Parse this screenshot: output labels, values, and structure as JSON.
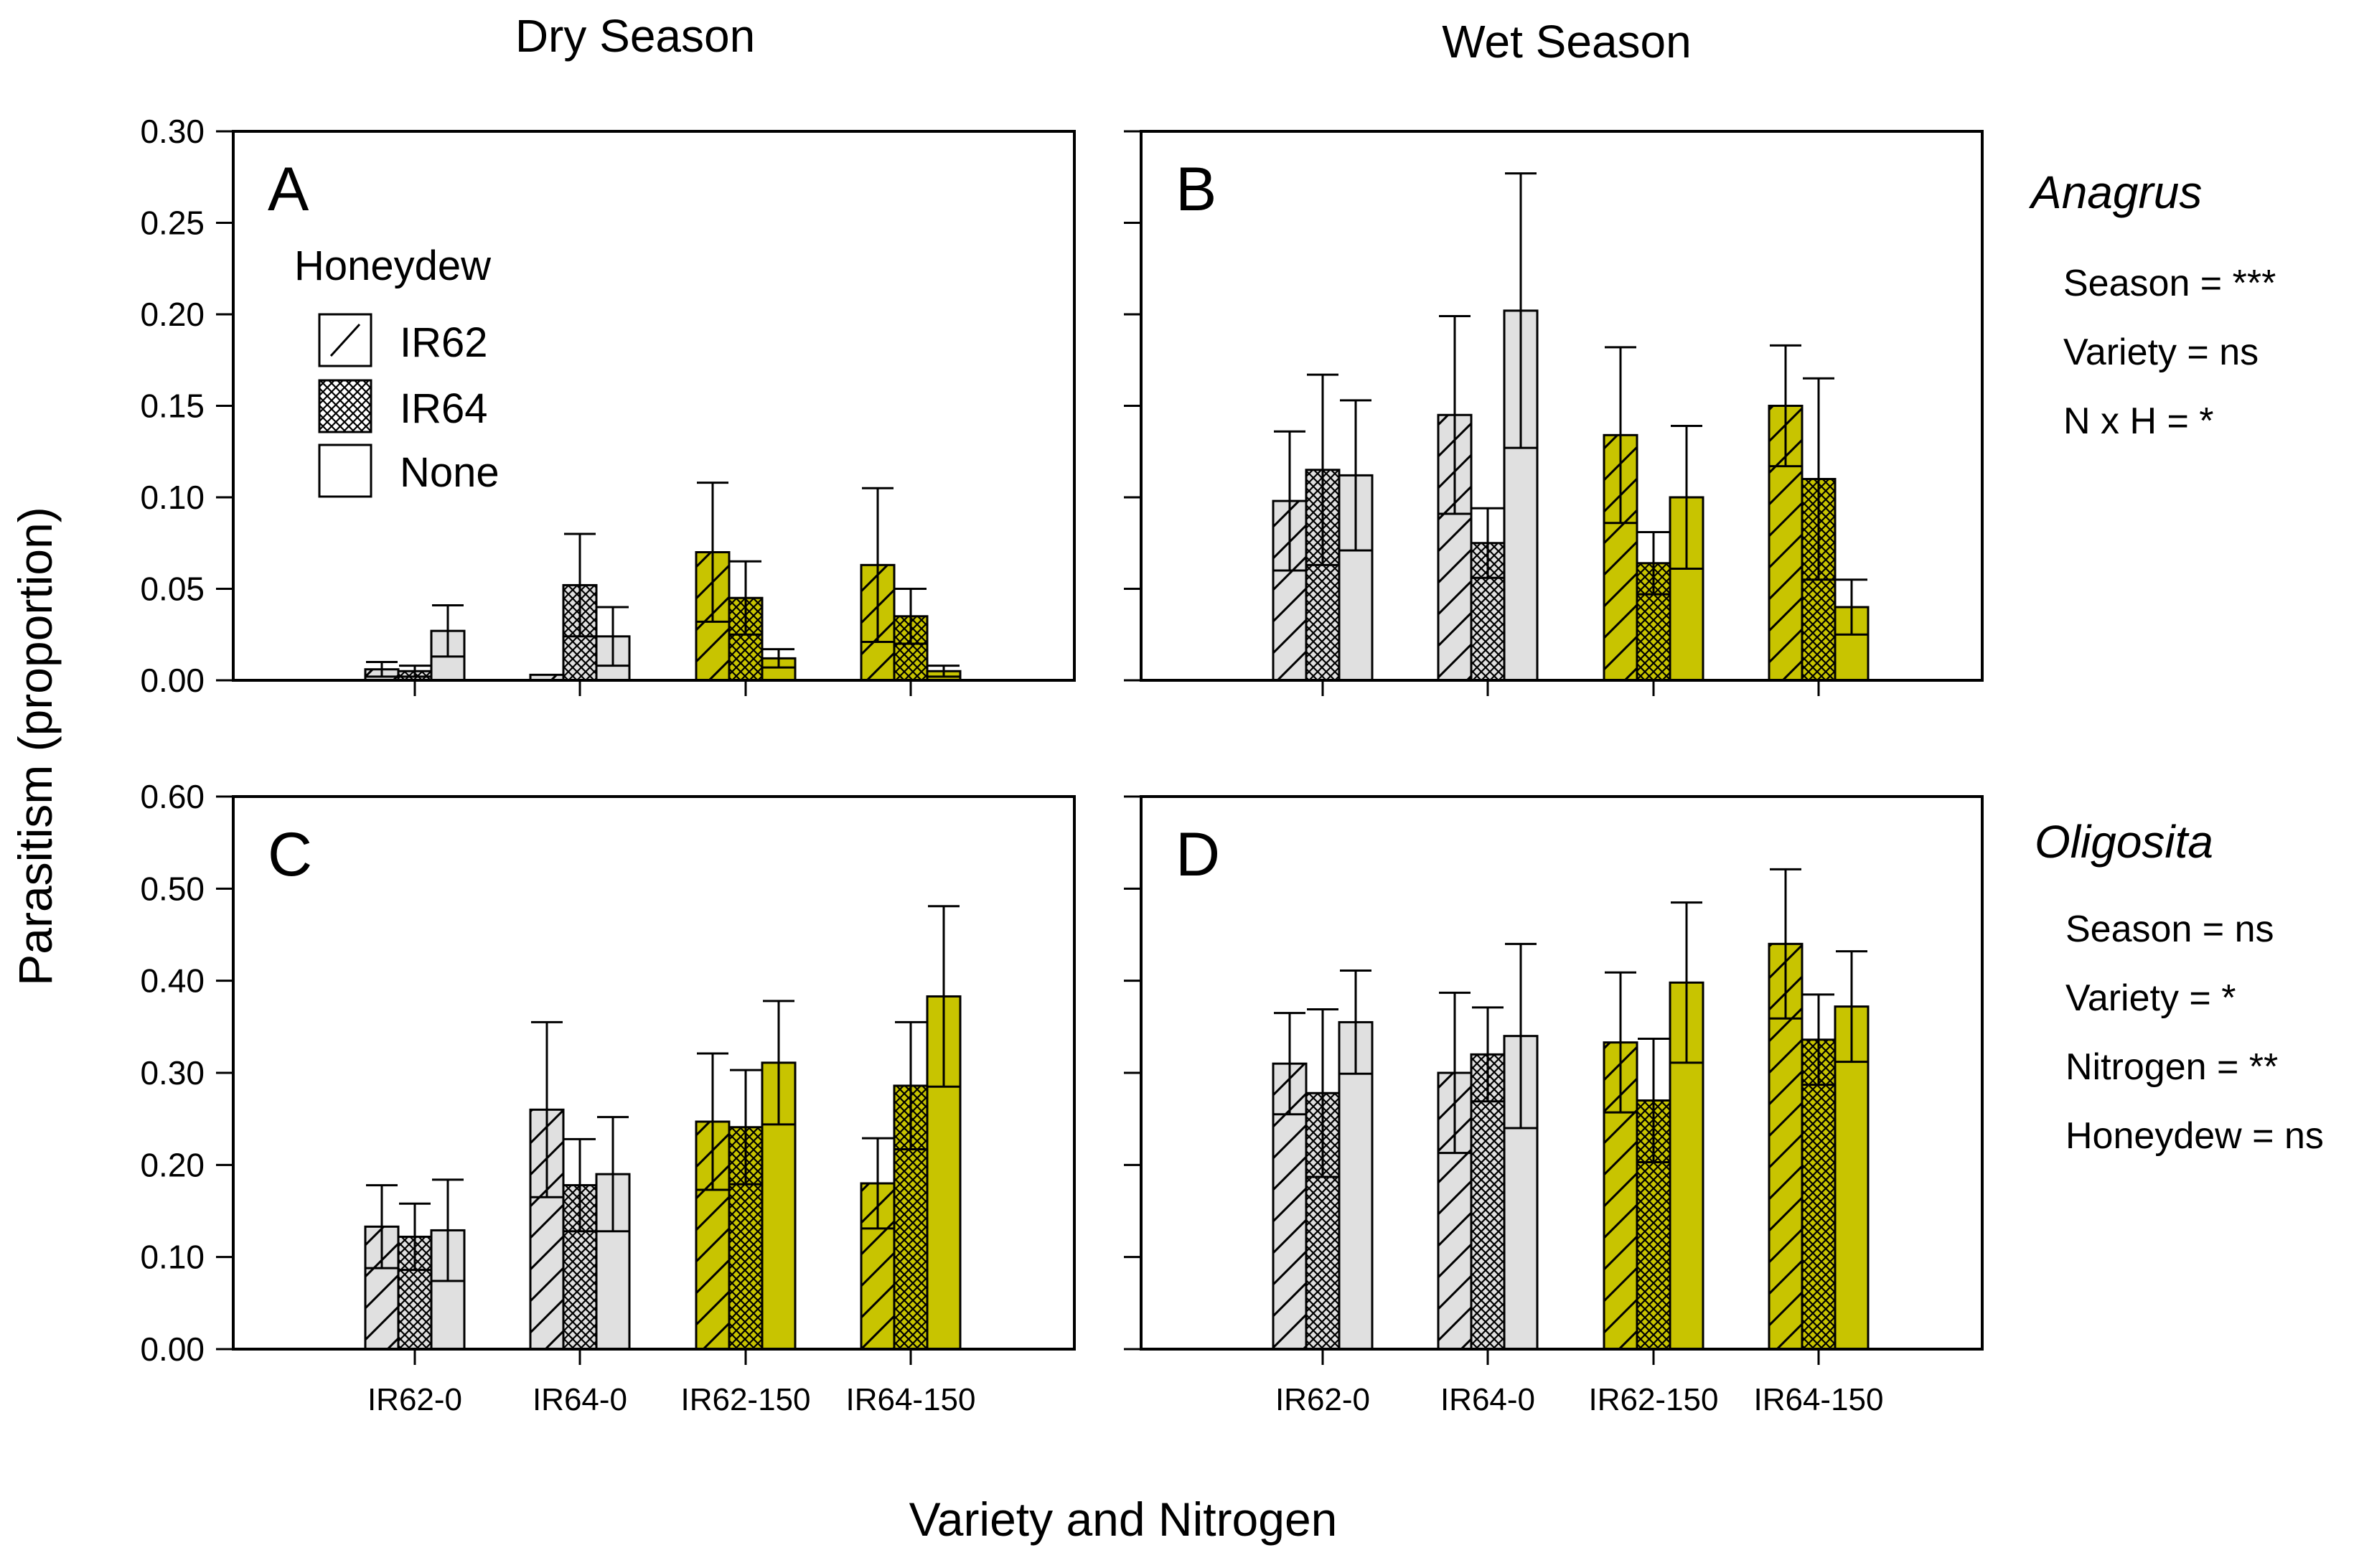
{
  "figure": {
    "season_titles": [
      "Dry Season",
      "Wet Season"
    ],
    "ylabel": "Parasitism (proportion)",
    "xlabel": "Variety and Nitrogen",
    "legend": {
      "title": "Honeydew",
      "entries": [
        "IR62",
        "IR64",
        "None"
      ]
    },
    "annotations": {
      "anagrus": {
        "species": "Anagrus",
        "stats": [
          "Season = ***",
          "Variety = ns",
          "N x H = *"
        ]
      },
      "oligosita": {
        "species": "Oligosita",
        "stats": [
          "Season = ns",
          "Variety = *",
          "Nitrogen = **",
          "Honeydew = ns"
        ]
      }
    }
  },
  "colors": {
    "low_nitrogen_fill": "#e0e0e0",
    "high_nitrogen_fill": "#c8c400",
    "axis": "#000000"
  },
  "chart_data": [
    {
      "type": "bar",
      "panel": "A",
      "season": "Dry Season",
      "species": "Anagrus",
      "categories": [
        "IR62-0",
        "IR64-0",
        "IR62-150",
        "IR64-150"
      ],
      "ylim": [
        0,
        0.3
      ],
      "yticks": [
        "0.00",
        "0.05",
        "0.10",
        "0.15",
        "0.20",
        "0.25",
        "0.30"
      ],
      "series": [
        {
          "name": "IR62",
          "values": [
            0.006,
            0.003,
            0.07,
            0.063
          ],
          "errors": [
            0.004,
            0.0,
            0.038,
            0.042
          ]
        },
        {
          "name": "IR64",
          "values": [
            0.005,
            0.052,
            0.045,
            0.035
          ],
          "errors": [
            0.003,
            0.028,
            0.02,
            0.015
          ]
        },
        {
          "name": "None",
          "values": [
            0.027,
            0.024,
            0.012,
            0.005
          ],
          "errors": [
            0.014,
            0.016,
            0.005,
            0.003
          ]
        }
      ]
    },
    {
      "type": "bar",
      "panel": "B",
      "season": "Wet Season",
      "species": "Anagrus",
      "categories": [
        "IR62-0",
        "IR64-0",
        "IR62-150",
        "IR64-150"
      ],
      "ylim": [
        0,
        0.3
      ],
      "yticks": [
        "0.00",
        "0.05",
        "0.10",
        "0.15",
        "0.20",
        "0.25",
        "0.30"
      ],
      "series": [
        {
          "name": "IR62",
          "values": [
            0.098,
            0.145,
            0.134,
            0.15
          ],
          "errors": [
            0.038,
            0.054,
            0.048,
            0.033
          ]
        },
        {
          "name": "IR64",
          "values": [
            0.115,
            0.075,
            0.064,
            0.11
          ],
          "errors": [
            0.052,
            0.019,
            0.017,
            0.055
          ]
        },
        {
          "name": "None",
          "values": [
            0.112,
            0.202,
            0.1,
            0.04
          ],
          "errors": [
            0.041,
            0.075,
            0.039,
            0.015
          ]
        }
      ]
    },
    {
      "type": "bar",
      "panel": "C",
      "season": "Dry Season",
      "species": "Oligosita",
      "categories": [
        "IR62-0",
        "IR64-0",
        "IR62-150",
        "IR64-150"
      ],
      "ylim": [
        0,
        0.6
      ],
      "yticks": [
        "0.00",
        "0.10",
        "0.20",
        "0.30",
        "0.40",
        "0.50",
        "0.60"
      ],
      "series": [
        {
          "name": "IR62",
          "values": [
            0.133,
            0.26,
            0.247,
            0.18
          ],
          "errors": [
            0.045,
            0.095,
            0.074,
            0.049
          ]
        },
        {
          "name": "IR64",
          "values": [
            0.122,
            0.178,
            0.241,
            0.286
          ],
          "errors": [
            0.036,
            0.05,
            0.062,
            0.069
          ]
        },
        {
          "name": "None",
          "values": [
            0.129,
            0.19,
            0.311,
            0.383
          ],
          "errors": [
            0.055,
            0.062,
            0.067,
            0.098
          ]
        }
      ]
    },
    {
      "type": "bar",
      "panel": "D",
      "season": "Wet Season",
      "species": "Oligosita",
      "categories": [
        "IR62-0",
        "IR64-0",
        "IR62-150",
        "IR64-150"
      ],
      "ylim": [
        0,
        0.6
      ],
      "yticks": [
        "0.00",
        "0.10",
        "0.20",
        "0.30",
        "0.40",
        "0.50",
        "0.60"
      ],
      "series": [
        {
          "name": "IR62",
          "values": [
            0.31,
            0.3,
            0.333,
            0.44
          ],
          "errors": [
            0.055,
            0.087,
            0.076,
            0.081
          ]
        },
        {
          "name": "IR64",
          "values": [
            0.278,
            0.32,
            0.27,
            0.336
          ],
          "errors": [
            0.091,
            0.051,
            0.067,
            0.049
          ]
        },
        {
          "name": "None",
          "values": [
            0.355,
            0.34,
            0.398,
            0.372
          ],
          "errors": [
            0.056,
            0.1,
            0.087,
            0.06
          ]
        }
      ]
    }
  ]
}
